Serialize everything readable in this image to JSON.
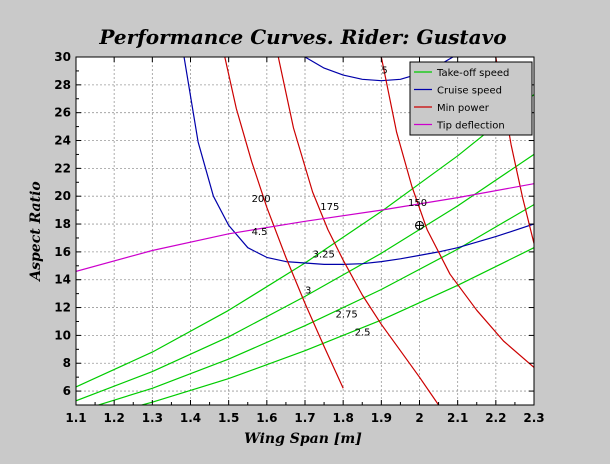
{
  "chart_data": {
    "type": "line",
    "title": "Performance Curves. Rider: Gustavo",
    "xlabel": "Wing Span [m]",
    "ylabel": "Aspect Ratio",
    "xlim": [
      1.1,
      2.3
    ],
    "ylim": [
      5,
      30
    ],
    "xticks": [
      "1.1",
      "1.2",
      "1.3",
      "1.4",
      "1.5",
      "1.6",
      "1.7",
      "1.8",
      "1.9",
      "2",
      "2.1",
      "2.2",
      "2.3"
    ],
    "yticks": [
      "6",
      "8",
      "10",
      "12",
      "14",
      "16",
      "18",
      "20",
      "22",
      "24",
      "26",
      "28",
      "30"
    ],
    "grid": true,
    "legend_position": "top-right",
    "legend": [
      {
        "name": "Take-off speed",
        "color": "#00cc00"
      },
      {
        "name": "Cruise speed",
        "color": "#0000aa"
      },
      {
        "name": "Min power",
        "color": "#cc0000"
      },
      {
        "name": "Tip deflection",
        "color": "#cc00cc"
      }
    ],
    "series": [
      {
        "group": "Take-off speed",
        "color": "#00cc00",
        "x": [
          1.1,
          1.3,
          1.5,
          1.7,
          1.9,
          2.1,
          2.3
        ],
        "y": [
          6.3,
          8.8,
          11.8,
          15.2,
          18.9,
          22.9,
          27.3
        ]
      },
      {
        "group": "Take-off speed",
        "color": "#00cc00",
        "x": [
          1.1,
          1.3,
          1.5,
          1.7,
          1.9,
          2.1,
          2.3
        ],
        "y": [
          5.3,
          7.4,
          9.9,
          12.8,
          15.9,
          19.3,
          23.0
        ]
      },
      {
        "group": "Take-off speed",
        "color": "#00cc00",
        "x": [
          1.1,
          1.3,
          1.5,
          1.7,
          1.9,
          2.1,
          2.3
        ],
        "y": [
          4.5,
          6.2,
          8.3,
          10.7,
          13.3,
          16.2,
          19.4
        ]
      },
      {
        "group": "Take-off speed",
        "color": "#00cc00",
        "x": [
          1.15,
          1.3,
          1.5,
          1.7,
          1.9,
          2.1,
          2.3
        ],
        "y": [
          4.1,
          5.2,
          6.9,
          8.9,
          11.1,
          13.6,
          16.3
        ]
      },
      {
        "group": "Cruise speed",
        "color": "#0000aa",
        "x": [
          1.38,
          1.42,
          1.46,
          1.5,
          1.55,
          1.6,
          1.65,
          1.7,
          1.75,
          1.8,
          1.85,
          1.9,
          1.95,
          2.0,
          2.05,
          2.1,
          2.2,
          2.3
        ],
        "y": [
          30.5,
          23.9,
          20.0,
          17.9,
          16.3,
          15.6,
          15.3,
          15.2,
          15.1,
          15.1,
          15.15,
          15.3,
          15.5,
          15.75,
          16.0,
          16.3,
          17.1,
          18.0
        ]
      },
      {
        "group": "Cruise speed",
        "color": "#0000aa",
        "x": [
          1.7,
          1.75,
          1.8,
          1.85,
          1.9,
          1.95,
          2.0,
          2.05,
          2.1
        ],
        "y": [
          30.0,
          29.2,
          28.7,
          28.4,
          28.3,
          28.4,
          28.8,
          29.4,
          30.2
        ]
      },
      {
        "group": "Min power",
        "color": "#cc0000",
        "x": [
          1.49,
          1.52,
          1.56,
          1.6,
          1.65,
          1.7,
          1.75,
          1.8
        ],
        "y": [
          30,
          26.3,
          22.5,
          19.2,
          15.6,
          12.3,
          9.2,
          6.2
        ]
      },
      {
        "group": "Min power",
        "color": "#cc0000",
        "x": [
          1.63,
          1.67,
          1.72,
          1.76,
          1.8,
          1.85,
          1.9,
          1.95,
          2.0,
          2.05
        ],
        "y": [
          30,
          24.9,
          20.3,
          17.6,
          15.4,
          12.9,
          10.8,
          8.9,
          7.0,
          5.0
        ]
      },
      {
        "group": "Min power",
        "color": "#cc0000",
        "x": [
          1.9,
          1.94,
          1.98,
          2.02,
          2.08,
          2.15,
          2.22,
          2.3
        ],
        "y": [
          30,
          24.6,
          20.7,
          17.6,
          14.4,
          11.8,
          9.6,
          7.7
        ]
      },
      {
        "group": "Min power",
        "color": "#cc0000",
        "x": [
          2.2,
          2.24,
          2.27,
          2.3
        ],
        "y": [
          30,
          23.7,
          19.9,
          16.6
        ]
      },
      {
        "group": "Tip deflection",
        "color": "#cc00cc",
        "x": [
          1.1,
          1.3,
          1.5,
          1.7,
          1.9,
          2.1,
          2.3
        ],
        "y": [
          14.6,
          16.1,
          17.3,
          18.2,
          19.0,
          19.9,
          20.9
        ]
      }
    ],
    "contour_labels": [
      {
        "text": "200",
        "x": 1.56,
        "y": 19.6
      },
      {
        "text": "175",
        "x": 1.74,
        "y": 19.0
      },
      {
        "text": "150",
        "x": 1.97,
        "y": 19.3
      },
      {
        "text": "5",
        "x": 1.9,
        "y": 28.8
      },
      {
        "text": "4.5",
        "x": 1.56,
        "y": 17.2
      },
      {
        "text": "3.25",
        "x": 1.72,
        "y": 15.6
      },
      {
        "text": "3",
        "x": 1.7,
        "y": 13.0
      },
      {
        "text": "2.75",
        "x": 1.78,
        "y": 11.3
      },
      {
        "text": "2.5",
        "x": 1.83,
        "y": 10.0
      }
    ],
    "marker": {
      "x": 2.0,
      "y": 17.9
    }
  }
}
